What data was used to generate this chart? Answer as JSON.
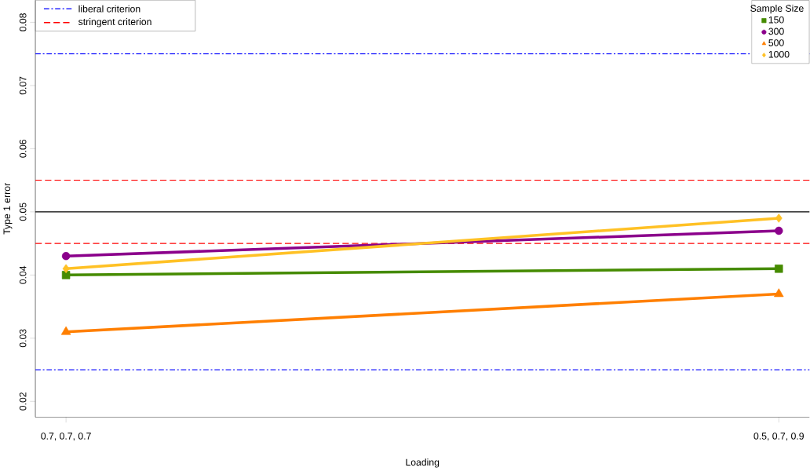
{
  "chart_data": {
    "type": "line",
    "xlabel": "Loading",
    "ylabel": "Type 1 error",
    "legend_title": "Sample Size",
    "legend": "top right",
    "categories": [
      "0.7, 0.7, 0.7",
      "0.5, 0.7, 0.9"
    ],
    "series": [
      {
        "name": "150",
        "color": "#458b00",
        "marker": "square",
        "values": [
          0.04,
          0.041
        ]
      },
      {
        "name": "300",
        "color": "#8b008b",
        "marker": "circle",
        "values": [
          0.043,
          0.047
        ]
      },
      {
        "name": "500",
        "color": "#ff7f00",
        "marker": "triangle",
        "values": [
          0.031,
          0.037
        ]
      },
      {
        "name": "1000",
        "color": "#ffc125",
        "marker": "diamond",
        "values": [
          0.041,
          0.049
        ]
      }
    ],
    "ylim": [
      0.0175,
      0.0835
    ],
    "yticks": [
      0.02,
      0.03,
      0.04,
      0.05,
      0.06,
      0.07,
      0.08
    ],
    "ref_lines": [
      {
        "axis": "y",
        "value": 0.075,
        "label": "liberal criterion",
        "color": "#0000ff",
        "line_style": "dashdot"
      },
      {
        "axis": "y",
        "value": 0.025,
        "color": "#0000ff",
        "line_style": "dashdot"
      },
      {
        "axis": "y",
        "value": 0.055,
        "label": "stringent criterion",
        "color": "#ff0000",
        "line_style": "dashed"
      },
      {
        "axis": "y",
        "value": 0.045,
        "color": "#ff0000",
        "line_style": "dashed"
      },
      {
        "axis": "y",
        "value": 0.05,
        "color": "#000000",
        "line_style": "solid"
      }
    ]
  }
}
